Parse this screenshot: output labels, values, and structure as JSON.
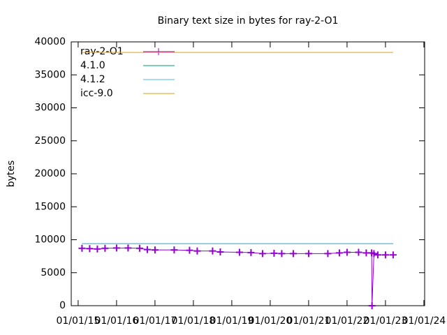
{
  "chart_data": {
    "type": "line",
    "title": "Binary text size in bytes for ray-2-O1",
    "y_label": "bytes",
    "xlim": [
      2014.82,
      2024.02
    ],
    "ylim": [
      0,
      40000
    ],
    "yticks": [
      0,
      5000,
      10000,
      15000,
      20000,
      25000,
      30000,
      35000,
      40000
    ],
    "xticks": [
      {
        "value": 2015,
        "label": "01/01/15"
      },
      {
        "value": 2016,
        "label": "01/01/16"
      },
      {
        "value": 2017,
        "label": "01/01/17"
      },
      {
        "value": 2018,
        "label": "01/01/18"
      },
      {
        "value": 2019,
        "label": "01/01/19"
      },
      {
        "value": 2020,
        "label": "01/01/20"
      },
      {
        "value": 2021,
        "label": "01/01/21"
      },
      {
        "value": 2022,
        "label": "01/01/22"
      },
      {
        "value": 2023,
        "label": "01/01/23"
      },
      {
        "value": 2024,
        "label": "01/01/24"
      }
    ],
    "legend": "top-left",
    "series": [
      {
        "name": "ray-2-O1",
        "color": "#9400d3",
        "points": true,
        "x": [
          2015.1,
          2015.3,
          2015.5,
          2015.7,
          2016.0,
          2016.3,
          2016.6,
          2016.8,
          2017.0,
          2017.5,
          2017.9,
          2018.1,
          2018.5,
          2018.7,
          2019.2,
          2019.5,
          2019.8,
          2020.1,
          2020.3,
          2020.6,
          2021.0,
          2021.5,
          2021.8,
          2022.0,
          2022.3,
          2022.5,
          2022.64,
          2022.65,
          2022.7,
          2022.8,
          2023.0,
          2023.2
        ],
        "values": [
          8700,
          8650,
          8600,
          8700,
          8750,
          8750,
          8700,
          8500,
          8450,
          8450,
          8400,
          8300,
          8300,
          8150,
          8100,
          8050,
          7900,
          7950,
          7900,
          7900,
          7900,
          7900,
          8000,
          8100,
          8100,
          8000,
          8000,
          0,
          7900,
          7700,
          7700,
          7700
        ]
      },
      {
        "name": "4.1.0",
        "color": "#009e73",
        "x": [
          2015.1,
          2023.2
        ],
        "values": [
          9400,
          9400
        ]
      },
      {
        "name": "4.1.2",
        "color": "#56b4e9",
        "x": [
          2015.1,
          2023.2
        ],
        "values": [
          9400,
          9400
        ]
      },
      {
        "name": "icc-9.0",
        "color": "#e69f00",
        "x": [
          2015.1,
          2023.2
        ],
        "values": [
          38400,
          38400
        ]
      }
    ]
  }
}
